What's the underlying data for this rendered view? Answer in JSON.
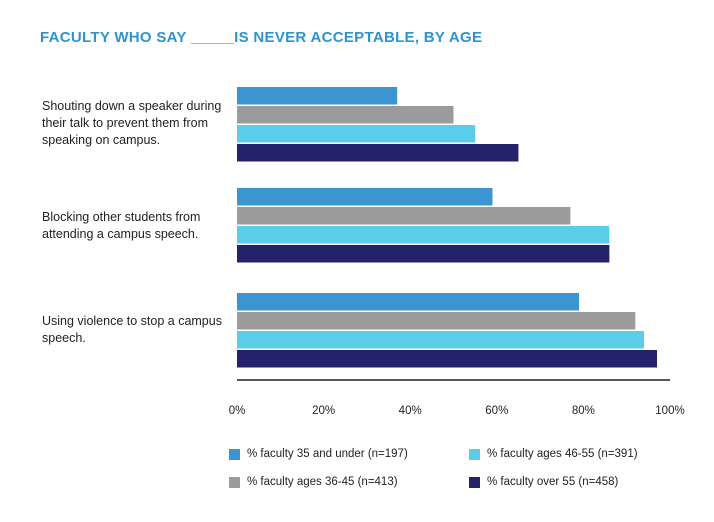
{
  "chart_data": {
    "type": "bar",
    "orientation": "horizontal",
    "title": "FACULTY WHO SAY _____IS NEVER ACCEPTABLE, BY AGE",
    "categories": [
      "Shouting down a speaker during their talk to prevent them from speaking on campus.",
      "Blocking other students from attending a campus speech.",
      "Using violence to stop a campus speech."
    ],
    "series": [
      {
        "name": "% faculty 35 and under (n=197)",
        "color": "#3a95d0",
        "values": [
          37,
          59,
          79
        ]
      },
      {
        "name": "% faculty ages 36-45 (n=413)",
        "color": "#9b9b9b",
        "values": [
          50,
          77,
          92
        ]
      },
      {
        "name": "% faculty ages 46-55 (n=391)",
        "color": "#5bcdea",
        "values": [
          55,
          86,
          94
        ]
      },
      {
        "name": "% faculty over 55 (n=458)",
        "color": "#23226b",
        "values": [
          65,
          86,
          97
        ]
      }
    ],
    "xlim": [
      0,
      100
    ],
    "x_ticks": [
      "0%",
      "20%",
      "40%",
      "60%",
      "80%",
      "100%"
    ],
    "title_color": "#2f93cf",
    "grid": false,
    "legend_position": "bottom"
  }
}
